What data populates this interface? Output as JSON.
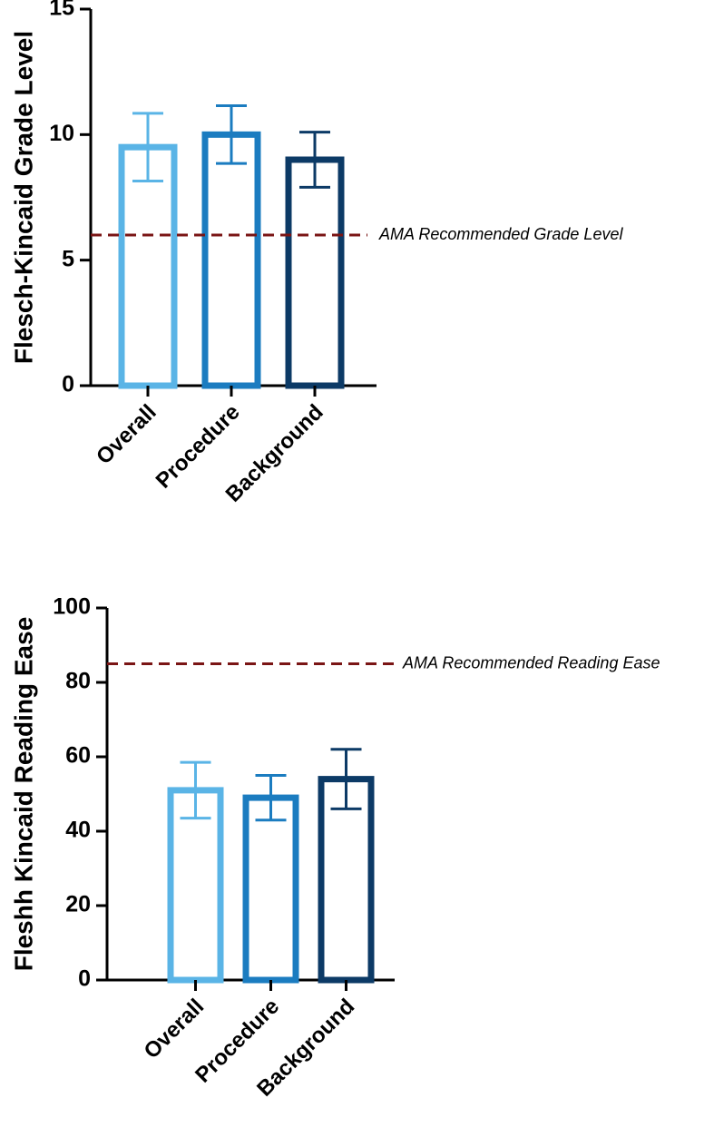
{
  "chart_data": [
    {
      "type": "bar",
      "y_label": "Flesch-Kincaid Grade Level",
      "categories": [
        "Overall",
        "Procedure",
        "Background"
      ],
      "values": [
        9.5,
        10,
        9
      ],
      "errors": [
        1.35,
        1.15,
        1.1
      ],
      "colors": [
        "#5ab4e6",
        "#1b7cc0",
        "#0c3a66"
      ],
      "ylim": [
        0,
        15
      ],
      "yticks": [
        0,
        5,
        10,
        15
      ],
      "reference_line": {
        "value": 6,
        "label": "AMA Recommended Grade Level",
        "color": "#7a1515"
      }
    },
    {
      "type": "bar",
      "y_label": "Fleshh Kincaid Reading Ease",
      "categories": [
        "Overall",
        "Procedure",
        "Background"
      ],
      "values": [
        51,
        49,
        54
      ],
      "errors": [
        7.5,
        6,
        8
      ],
      "colors": [
        "#5ab4e6",
        "#1b7cc0",
        "#0c3a66"
      ],
      "ylim": [
        0,
        100
      ],
      "yticks": [
        0,
        20,
        40,
        60,
        80,
        100
      ],
      "reference_line": {
        "value": 85,
        "label": "AMA Recommended Reading Ease",
        "color": "#7a1515"
      }
    }
  ]
}
